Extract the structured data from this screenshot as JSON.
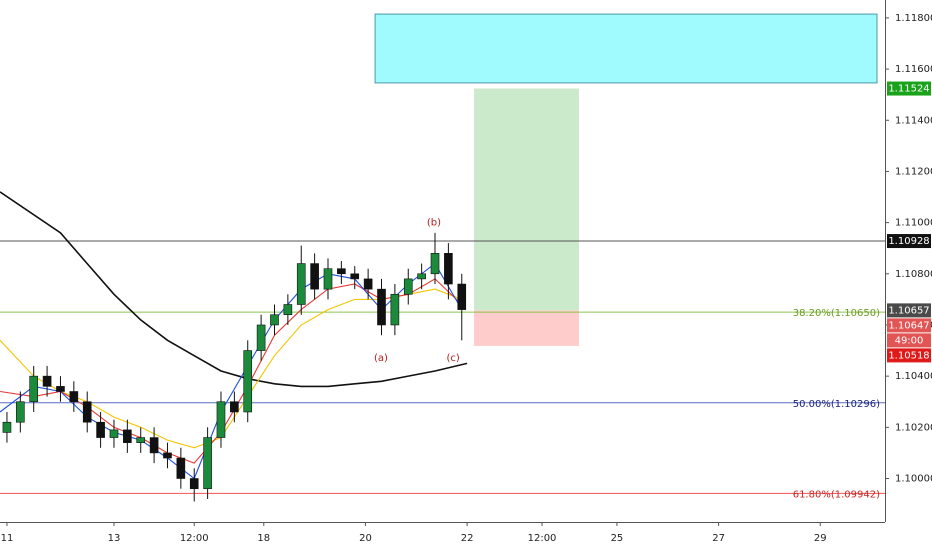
{
  "chart_data": {
    "type": "candlestick",
    "xlim": [
      -0.13,
      16.41
    ],
    "ylim": [
      1.0983,
      1.1187
    ],
    "xticks": [
      {
        "value": 0,
        "label": "11"
      },
      {
        "value": 2,
        "label": "13"
      },
      {
        "value": 3.5,
        "label": "12:00"
      },
      {
        "value": 4.8,
        "label": "18"
      },
      {
        "value": 6.7,
        "label": "20"
      },
      {
        "value": 8.6,
        "label": "22"
      },
      {
        "value": 10,
        "label": "12:00"
      },
      {
        "value": 11.4,
        "label": "25"
      },
      {
        "value": 13.3,
        "label": "27"
      },
      {
        "value": 15.2,
        "label": "29"
      }
    ],
    "yticks": [
      {
        "value": 1.1,
        "label": "1.10000"
      },
      {
        "value": 1.102,
        "label": "1.10200"
      },
      {
        "value": 1.104,
        "label": "1.10400"
      },
      {
        "value": 1.106,
        "label": "1.10600"
      },
      {
        "value": 1.108,
        "label": "1.10800"
      },
      {
        "value": 1.11,
        "label": "1.11000"
      },
      {
        "value": 1.112,
        "label": "1.11200"
      },
      {
        "value": 1.114,
        "label": "1.11400"
      },
      {
        "value": 1.116,
        "label": "1.11600"
      },
      {
        "value": 1.118,
        "label": "1.11800"
      }
    ],
    "up_color": "#1b8a3a",
    "down_color": "#111111",
    "x": [
      0,
      0.25,
      0.5,
      0.75,
      1,
      1.25,
      1.5,
      1.75,
      2,
      2.25,
      2.5,
      2.75,
      3,
      3.25,
      3.5,
      3.75,
      4,
      4.25,
      4.5,
      4.75,
      5,
      5.25,
      5.5,
      5.75,
      6,
      6.25,
      6.5,
      6.75,
      7,
      7.25,
      7.5,
      7.75,
      8,
      8.25,
      8.5
    ],
    "open": [
      1.1018,
      1.1022,
      1.103,
      1.104,
      1.1036,
      1.1034,
      1.103,
      1.1022,
      1.1016,
      1.1019,
      1.1014,
      1.1016,
      1.101,
      1.1008,
      1.1,
      1.0996,
      1.1016,
      1.103,
      1.1026,
      1.105,
      1.106,
      1.1064,
      1.1068,
      1.1084,
      1.1074,
      1.1082,
      1.108,
      1.1078,
      1.1074,
      1.106,
      1.1072,
      1.1078,
      1.108,
      1.1088,
      1.1076
    ],
    "high": [
      1.1026,
      1.1034,
      1.1044,
      1.1044,
      1.104,
      1.1038,
      1.1034,
      1.1026,
      1.1023,
      1.1023,
      1.102,
      1.102,
      1.1014,
      1.1012,
      1.1004,
      1.102,
      1.1034,
      1.1034,
      1.1054,
      1.1064,
      1.1068,
      1.1072,
      1.1091,
      1.1088,
      1.1086,
      1.1085,
      1.1083,
      1.1082,
      1.1078,
      1.1076,
      1.1082,
      1.1084,
      1.1096,
      1.1092,
      1.108
    ],
    "low": [
      1.1014,
      1.1018,
      1.1026,
      1.1032,
      1.103,
      1.1026,
      1.1018,
      1.1012,
      1.1012,
      1.101,
      1.101,
      1.1006,
      1.1004,
      1.0996,
      1.0991,
      1.0992,
      1.1012,
      1.1022,
      1.1022,
      1.1046,
      1.1056,
      1.106,
      1.1064,
      1.107,
      1.107,
      1.1076,
      1.1074,
      1.107,
      1.1056,
      1.1056,
      1.1068,
      1.1074,
      1.1076,
      1.107,
      1.1054
    ],
    "close": [
      1.1022,
      1.103,
      1.104,
      1.1036,
      1.1034,
      1.103,
      1.1022,
      1.1016,
      1.1019,
      1.1014,
      1.1016,
      1.101,
      1.1008,
      1.1,
      1.0996,
      1.1016,
      1.103,
      1.1026,
      1.105,
      1.106,
      1.1064,
      1.1068,
      1.1084,
      1.1074,
      1.1082,
      1.108,
      1.1078,
      1.1074,
      1.106,
      1.1072,
      1.1078,
      1.108,
      1.1088,
      1.1076,
      1.1066
    ],
    "series": [
      {
        "color": "#111111",
        "x": [
          -0.13,
          1,
          1.5,
          2,
          2.5,
          3,
          3.5,
          4,
          4.5,
          5,
          5.5,
          6,
          6.5,
          7,
          7.5,
          8,
          8.6
        ],
        "values": [
          1.1112,
          1.1096,
          1.1084,
          1.1072,
          1.1062,
          1.1054,
          1.1048,
          1.1042,
          1.1039,
          1.1037,
          1.1036,
          1.1036,
          1.1037,
          1.1038,
          1.104,
          1.1042,
          1.1045
        ]
      },
      {
        "color": "#f5c400",
        "x": [
          -0.13,
          0.5,
          1,
          1.5,
          2,
          2.5,
          3,
          3.5,
          4,
          4.5,
          5,
          5.5,
          6,
          6.5,
          7,
          7.5,
          8,
          8.5
        ],
        "values": [
          1.1054,
          1.104,
          1.1034,
          1.103,
          1.1024,
          1.102,
          1.1015,
          1.1012,
          1.1016,
          1.1032,
          1.1048,
          1.106,
          1.1066,
          1.107,
          1.107,
          1.1072,
          1.1074,
          1.107
        ]
      },
      {
        "color": "#e53935",
        "x": [
          -0.13,
          0.5,
          1,
          1.5,
          2,
          2.5,
          3,
          3.5,
          4,
          4.5,
          5,
          5.5,
          6,
          6.5,
          7,
          7.5,
          8,
          8.5
        ],
        "values": [
          1.1034,
          1.1032,
          1.1034,
          1.1028,
          1.102,
          1.1016,
          1.101,
          1.1006,
          1.1018,
          1.1036,
          1.1056,
          1.1066,
          1.1074,
          1.1076,
          1.107,
          1.1072,
          1.1078,
          1.1068
        ]
      },
      {
        "color": "#1e4fd8",
        "x": [
          -0.13,
          0.5,
          1,
          1.5,
          2,
          2.5,
          3,
          3.5,
          4,
          4.5,
          5,
          5.5,
          6,
          6.5,
          7,
          7.5,
          8,
          8.5
        ],
        "values": [
          1.1026,
          1.1036,
          1.1034,
          1.1024,
          1.1018,
          1.1015,
          1.1008,
          1.1,
          1.1026,
          1.1044,
          1.1062,
          1.1074,
          1.108,
          1.1078,
          1.1066,
          1.1076,
          1.1084,
          1.1066
        ]
      }
    ],
    "zones": [
      {
        "x": [
          6.88,
          16.26
        ],
        "top": 1.11815,
        "bottom": 1.11546,
        "color": "#9ffbff",
        "stroke": "#4a9aa8"
      },
      {
        "x": [
          8.73,
          10.69
        ],
        "top": 1.11524,
        "bottom": 1.10657,
        "color": "#cbe9cb",
        "stroke": "none"
      },
      {
        "x": [
          8.73,
          10.69
        ],
        "top": 1.10657,
        "bottom": 1.10518,
        "color": "#ffcccc",
        "stroke": "none"
      }
    ],
    "hlines": [
      {
        "value": 1.10928,
        "color": "#555555"
      },
      {
        "value": 1.1065,
        "color": "#8bc34a",
        "label": "38.20%(1.10650)",
        "label_color": "#6a9b1f"
      },
      {
        "value": 1.10296,
        "color": "#5c6bc0",
        "label": "50.00%(1.10296)",
        "label_color": "#1a237e"
      },
      {
        "value": 1.09942,
        "color": "#ef5350",
        "label": "61.80%(1.09942)",
        "label_color": "#c62828"
      }
    ],
    "annotations": [
      {
        "text": "(b)",
        "x": 7.98,
        "y": 1.11
      },
      {
        "text": "(a)",
        "x": 6.99,
        "y": 1.1047
      },
      {
        "text": "(c)",
        "x": 8.34,
        "y": 1.1047
      }
    ],
    "annotation_color": "#b71c1c",
    "price_labels": [
      {
        "value": 1.11524,
        "label": "1.11524",
        "color": "#1aa31a"
      },
      {
        "value": 1.10928,
        "label": "1.10928",
        "color": "#111111"
      },
      {
        "value": 1.10657,
        "label": "1.10657",
        "color": "#4a4a4a"
      },
      {
        "value": 1.10647,
        "label": "1.10647",
        "color": "#e25555"
      },
      {
        "value": 1.10518,
        "label": "1.10518",
        "color": "#e01919"
      }
    ],
    "countdown": "49:00"
  }
}
